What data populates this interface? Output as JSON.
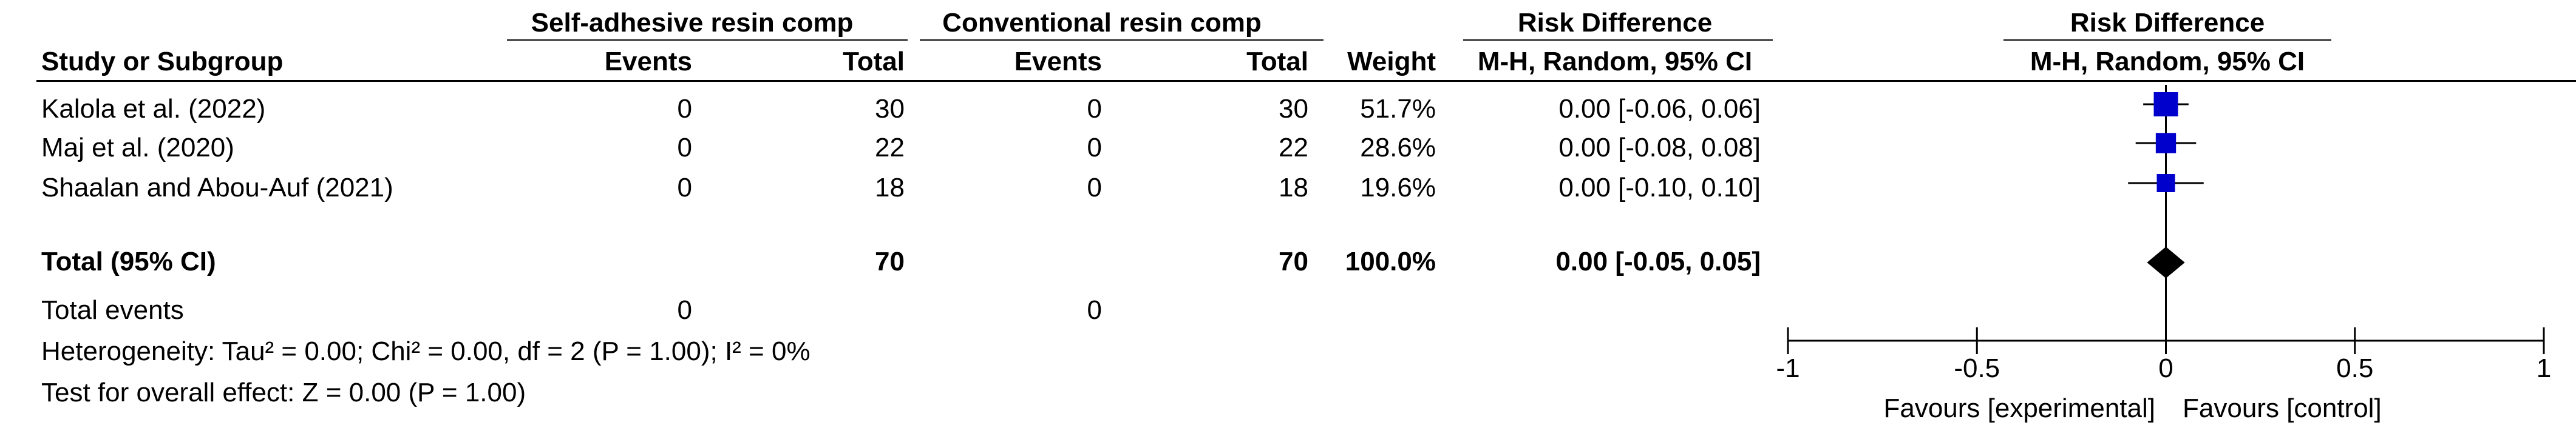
{
  "header": {
    "group1": "Self-adhesive resin comp",
    "group2": "Conventional resin comp",
    "effect_title": "Risk Difference",
    "plot_title": "Risk Difference",
    "study_col": "Study or Subgroup",
    "events1": "Events",
    "total1": "Total",
    "events2": "Events",
    "total2": "Total",
    "weight": "Weight",
    "method": "M-H, Random, 95% CI",
    "plot_method": "M-H, Random, 95% CI"
  },
  "studies": [
    {
      "name": "Kalola et al. (2022)",
      "events1": "0",
      "total1": "30",
      "events2": "0",
      "total2": "30",
      "weight": "51.7%",
      "ci": "0.00 [-0.06, 0.06]"
    },
    {
      "name": "Maj et al. (2020)",
      "events1": "0",
      "total1": "22",
      "events2": "0",
      "total2": "22",
      "weight": "28.6%",
      "ci": "0.00 [-0.08, 0.08]"
    },
    {
      "name": "Shaalan  and Abou-Auf (2021)",
      "events1": "0",
      "total1": "18",
      "events2": "0",
      "total2": "18",
      "weight": "19.6%",
      "ci": "0.00 [-0.10, 0.10]"
    }
  ],
  "total": {
    "label": "Total (95% CI)",
    "total1": "70",
    "total2": "70",
    "weight": "100.0%",
    "ci": "0.00 [-0.05, 0.05]"
  },
  "events": {
    "label": "Total events",
    "events1": "0",
    "events2": "0"
  },
  "heterogeneity": "Heterogeneity: Tau² = 0.00; Chi² = 0.00, df = 2 (P = 1.00); I² = 0%",
  "overall_effect": "Test for overall effect: Z = 0.00 (P = 1.00)",
  "axis": {
    "favours_left": "Favours [experimental]",
    "favours_right": "Favours [control]"
  },
  "colors": {
    "study_marker": "#0000cc",
    "pooled_marker": "#000000"
  },
  "chart_data": {
    "type": "scatter",
    "title": "Risk Difference",
    "xlabel": "",
    "ylabel": "",
    "xlim": [
      -1,
      1
    ],
    "xticks": [
      -1,
      -0.5,
      0,
      0.5,
      1
    ],
    "xtick_labels": [
      "-1",
      "-0.5",
      "0",
      "0.5",
      "1"
    ],
    "studies": [
      {
        "name": "Kalola et al. (2022)",
        "estimate": 0.0,
        "lower": -0.06,
        "upper": 0.06,
        "weight": 51.7
      },
      {
        "name": "Maj et al. (2020)",
        "estimate": 0.0,
        "lower": -0.08,
        "upper": 0.08,
        "weight": 28.6
      },
      {
        "name": "Shaalan  and Abou-Auf (2021)",
        "estimate": 0.0,
        "lower": -0.1,
        "upper": 0.1,
        "weight": 19.6
      }
    ],
    "pooled": {
      "estimate": 0.0,
      "lower": -0.05,
      "upper": 0.05
    }
  }
}
